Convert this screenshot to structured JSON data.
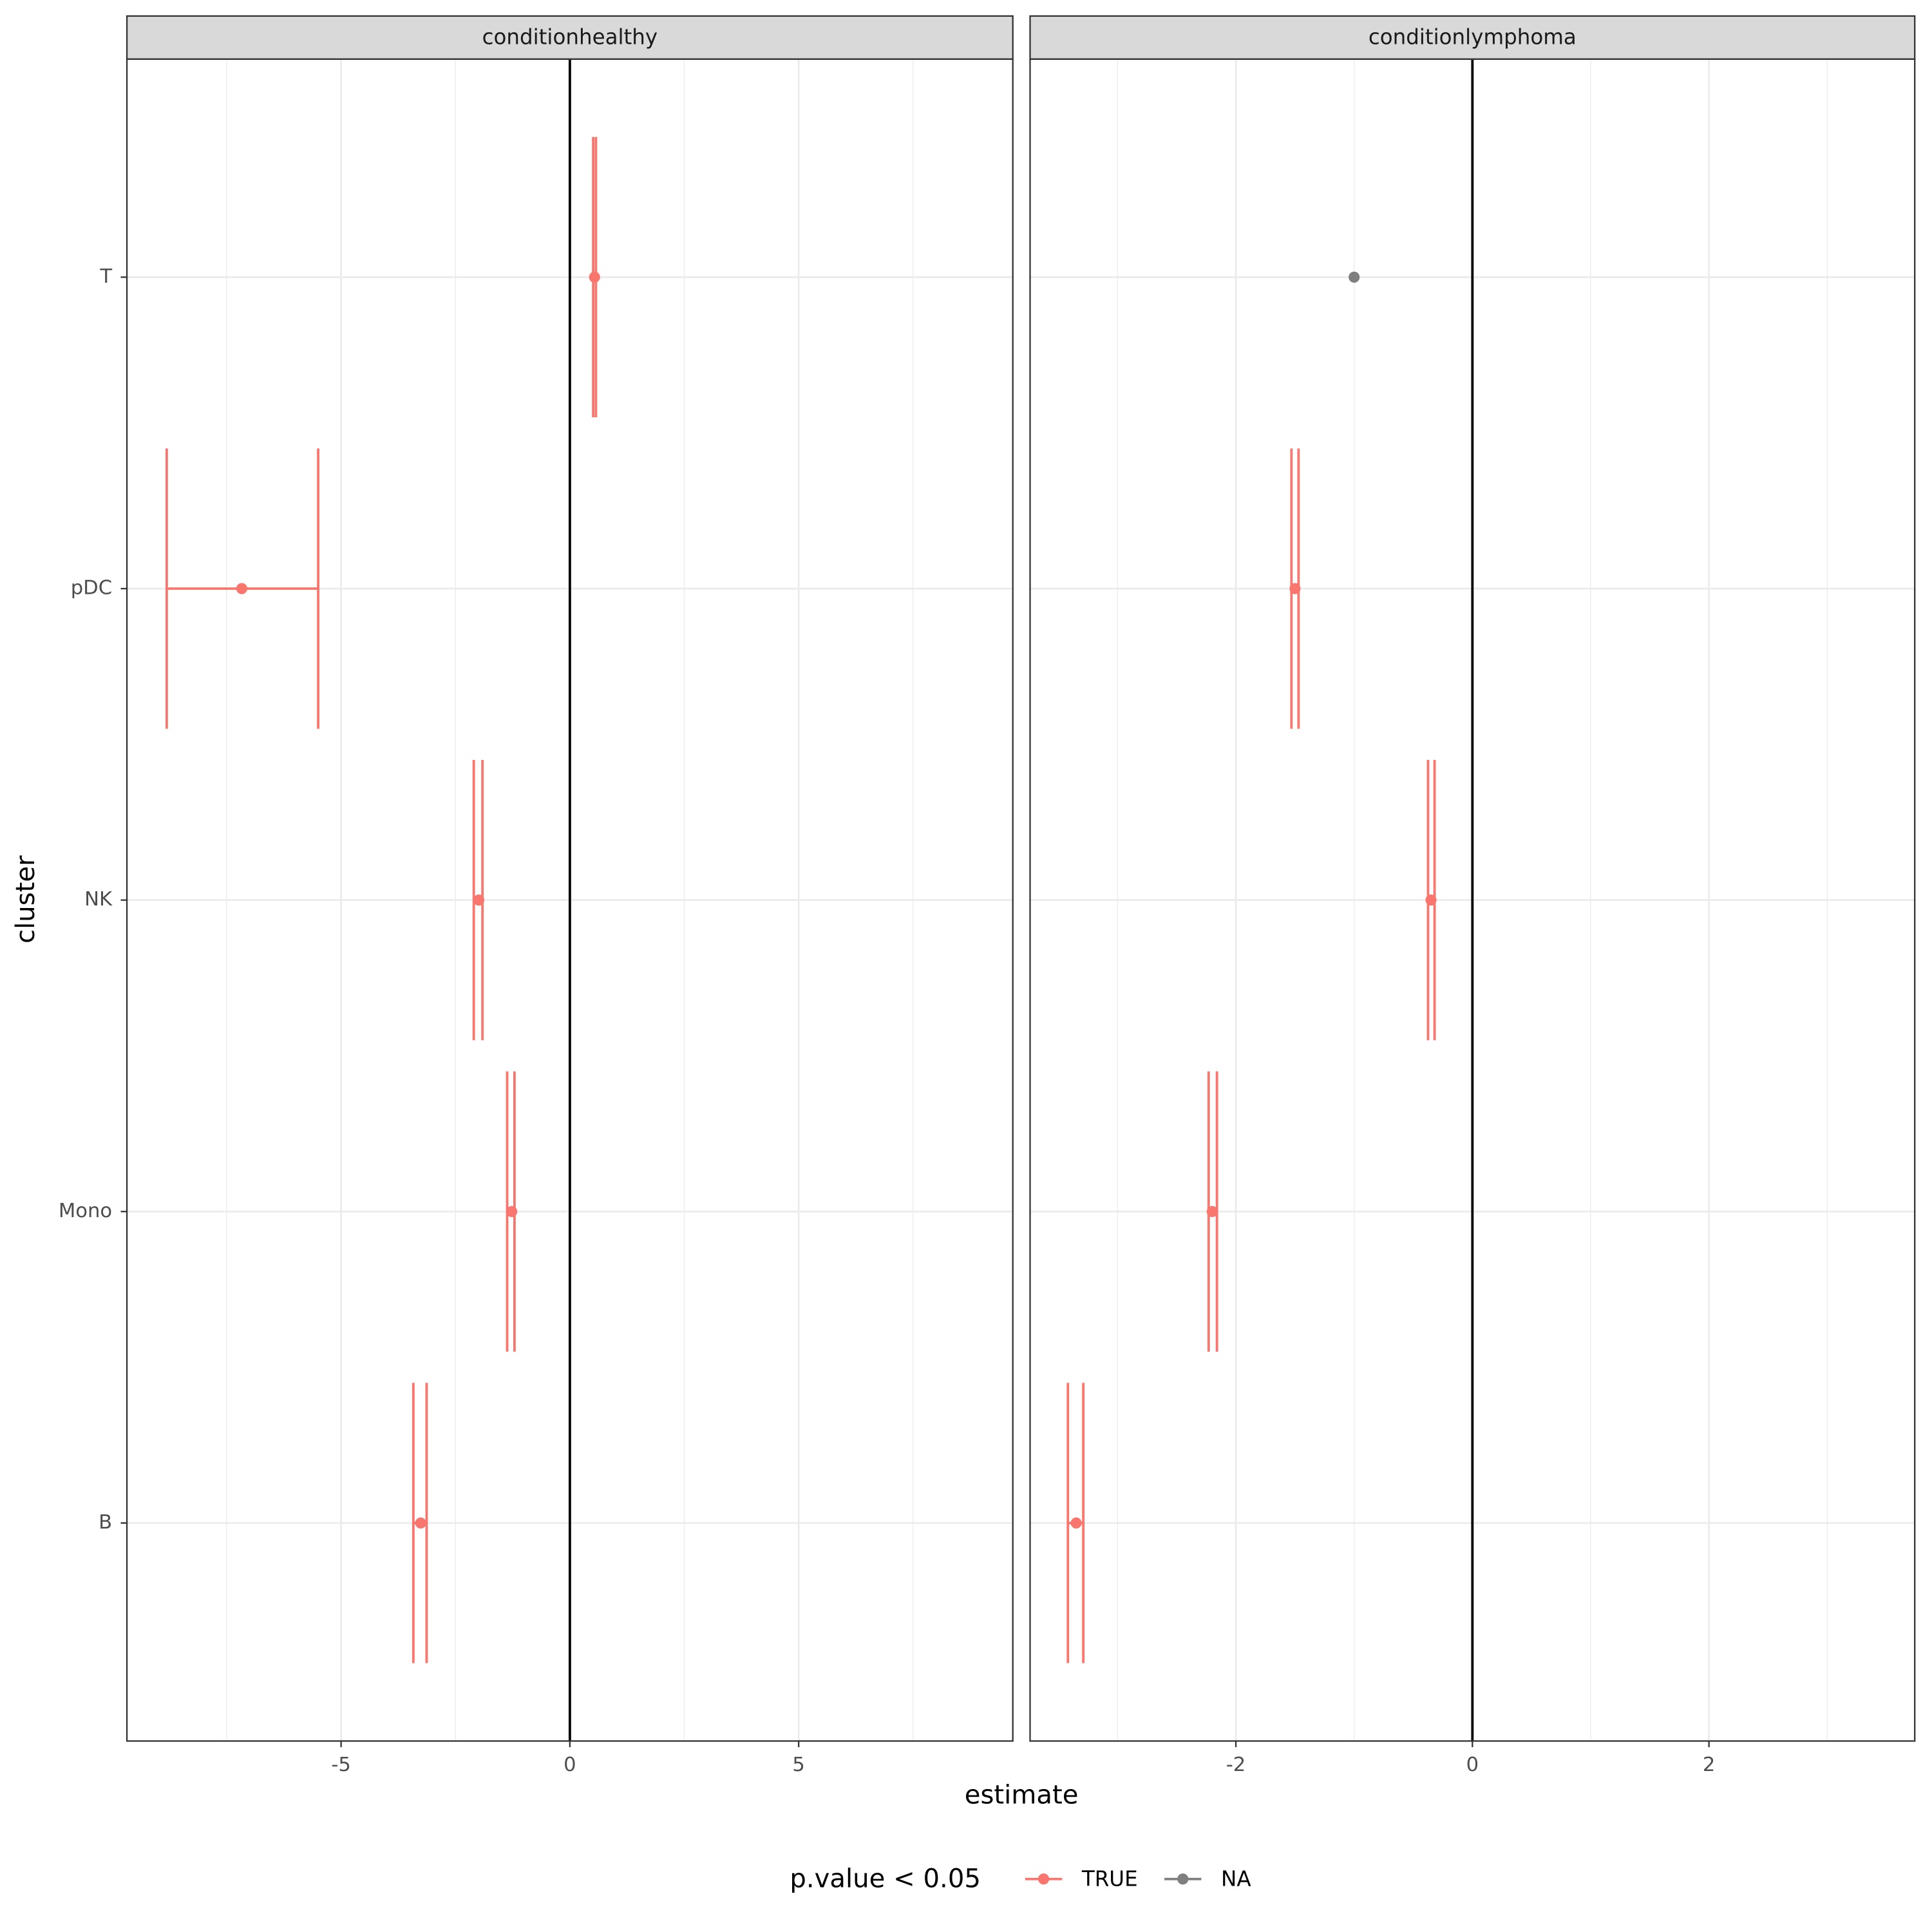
{
  "chart_data": {
    "type": "errorbar",
    "xlabel": "estimate",
    "ylabel": "cluster",
    "legend_title": "p.value < 0.05",
    "legend_position": "bottom",
    "categories": [
      "B",
      "Mono",
      "NK",
      "pDC",
      "T"
    ],
    "grid": true,
    "facets": [
      {
        "title": "conditionhealthy",
        "xlim": [
          -9.68,
          9.68
        ],
        "xticks": [
          -5,
          0,
          5
        ],
        "minor_xticks": [
          -7.5,
          -2.5,
          2.5,
          7.5
        ],
        "vline": 0,
        "series": [
          {
            "name": "TRUE",
            "color": "#F8766D",
            "values": [
              -3.26,
              -1.27,
              -1.99,
              -7.17,
              0.54
            ],
            "low": [
              -3.42,
              -1.37,
              -2.1,
              -8.81,
              0.51
            ],
            "high": [
              -3.13,
              -1.21,
              -1.91,
              -5.5,
              0.57
            ]
          },
          {
            "name": "NA",
            "color": "#7F7F7F",
            "values": [
              null,
              null,
              null,
              null,
              null
            ]
          }
        ]
      },
      {
        "title": "conditionlymphoma",
        "xlim": [
          -3.74,
          3.74
        ],
        "xticks": [
          -2,
          0,
          2
        ],
        "minor_xticks": [
          -3,
          -1,
          1,
          3
        ],
        "vline": 0,
        "series": [
          {
            "name": "TRUE",
            "color": "#F8766D",
            "values": [
              -3.35,
              -2.2,
              -0.35,
              -1.5,
              null
            ],
            "low": [
              -3.42,
              -2.23,
              -0.375,
              -1.53,
              null
            ],
            "high": [
              -3.29,
              -2.16,
              -0.32,
              -1.47,
              null
            ]
          },
          {
            "name": "NA",
            "color": "#7F7F7F",
            "values": [
              null,
              null,
              null,
              null,
              -1.0
            ]
          }
        ]
      }
    ]
  }
}
